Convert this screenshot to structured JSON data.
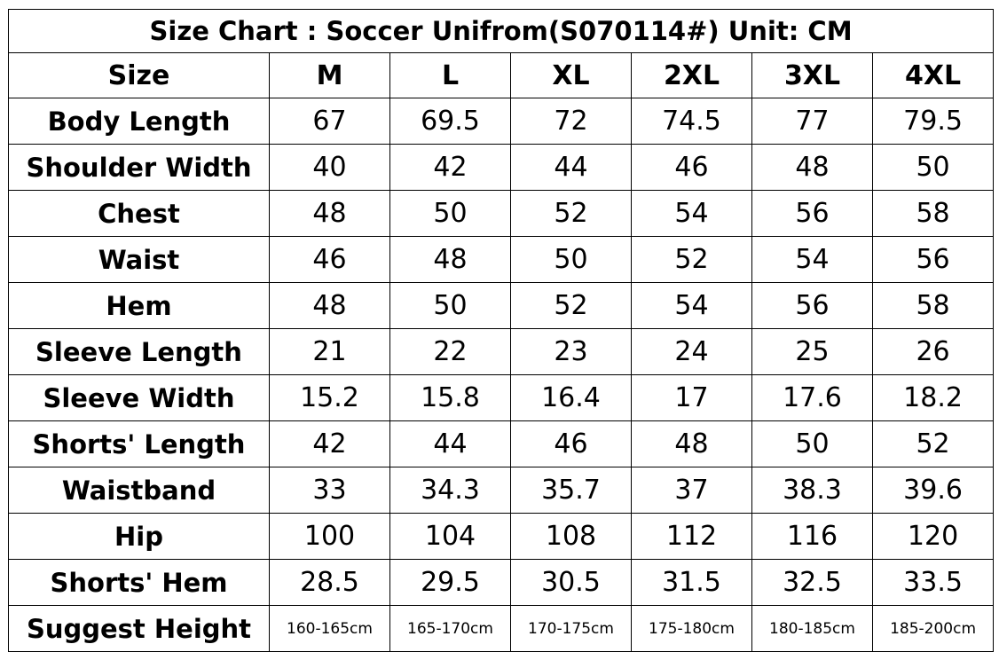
{
  "title": "Size Chart :  Soccer Unifrom(S070114#)  Unit: CM",
  "header": {
    "label": "Size",
    "sizes": [
      "M",
      "L",
      "XL",
      "2XL",
      "3XL",
      "4XL"
    ]
  },
  "rows": [
    {
      "label": "Body Length",
      "values": [
        "67",
        "69.5",
        "72",
        "74.5",
        "77",
        "79.5"
      ]
    },
    {
      "label": "Shoulder Width",
      "values": [
        "40",
        "42",
        "44",
        "46",
        "48",
        "50"
      ]
    },
    {
      "label": "Chest",
      "values": [
        "48",
        "50",
        "52",
        "54",
        "56",
        "58"
      ]
    },
    {
      "label": "Waist",
      "values": [
        "46",
        "48",
        "50",
        "52",
        "54",
        "56"
      ]
    },
    {
      "label": "Hem",
      "values": [
        "48",
        "50",
        "52",
        "54",
        "56",
        "58"
      ]
    },
    {
      "label": "Sleeve Length",
      "values": [
        "21",
        "22",
        "23",
        "24",
        "25",
        "26"
      ]
    },
    {
      "label": "Sleeve Width",
      "values": [
        "15.2",
        "15.8",
        "16.4",
        "17",
        "17.6",
        "18.2"
      ]
    },
    {
      "label": "Shorts' Length",
      "values": [
        "42",
        "44",
        "46",
        "48",
        "50",
        "52"
      ]
    },
    {
      "label": "Waistband",
      "values": [
        "33",
        "34.3",
        "35.7",
        "37",
        "38.3",
        "39.6"
      ]
    },
    {
      "label": "Hip",
      "values": [
        "100",
        "104",
        "108",
        "112",
        "116",
        "120"
      ]
    },
    {
      "label": "Shorts' Hem",
      "values": [
        "28.5",
        "29.5",
        "30.5",
        "31.5",
        "32.5",
        "33.5"
      ]
    },
    {
      "label": "Suggest Height",
      "values": [
        "160-165cm",
        "165-170cm",
        "170-175cm",
        "175-180cm",
        "180-185cm",
        "185-200cm"
      ]
    }
  ]
}
